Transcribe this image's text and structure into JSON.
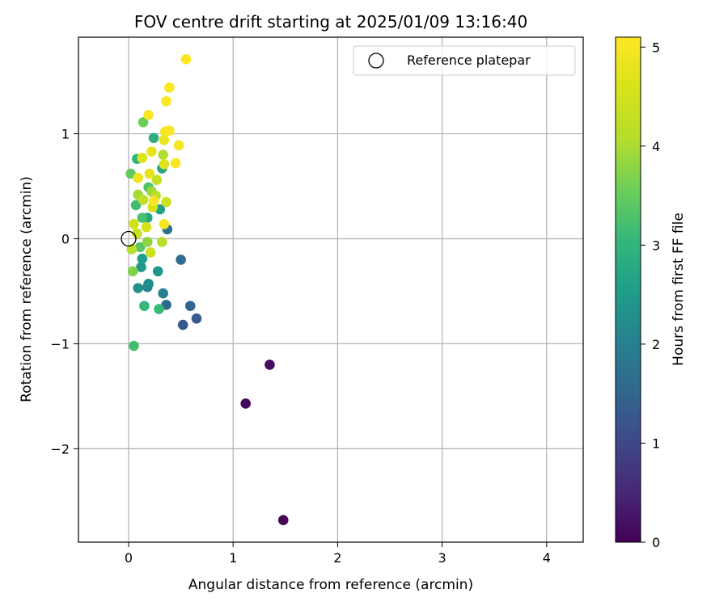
{
  "chart_data": {
    "type": "scatter",
    "title": "FOV centre drift starting at 2025/01/09 13:16:40",
    "xlabel": "Angular distance from reference (arcmin)",
    "ylabel": "Rotation from reference (arcmin)",
    "colorbar_label": "Hours from first FF file",
    "xlim": [
      -0.48,
      4.35
    ],
    "ylim": [
      -2.89,
      1.92
    ],
    "x_ticks": [
      0,
      1,
      2,
      3,
      4
    ],
    "y_ticks": [
      -2,
      -1,
      0,
      1
    ],
    "grid": true,
    "legend_position": "top-right",
    "colormap": "viridis",
    "color_range": [
      0,
      5.1
    ],
    "colorbar_ticks": [
      0,
      1,
      2,
      3,
      4,
      5
    ],
    "legend": [
      {
        "label": "Reference platepar",
        "marker": "open-circle"
      }
    ],
    "reference_point": {
      "x": 0,
      "y": 0
    },
    "points": [
      {
        "x": 1.48,
        "y": -2.68,
        "hours": 0.05
      },
      {
        "x": 1.12,
        "y": -1.57,
        "hours": 0.1
      },
      {
        "x": 1.35,
        "y": -1.2,
        "hours": 0.15
      },
      {
        "x": 0.52,
        "y": -0.82,
        "hours": 1.3
      },
      {
        "x": 0.65,
        "y": -0.76,
        "hours": 1.35
      },
      {
        "x": 0.59,
        "y": -0.64,
        "hours": 1.45
      },
      {
        "x": 0.36,
        "y": -0.63,
        "hours": 1.55
      },
      {
        "x": 0.5,
        "y": -0.2,
        "hours": 1.6
      },
      {
        "x": 0.37,
        "y": 0.09,
        "hours": 1.7
      },
      {
        "x": 0.33,
        "y": -0.52,
        "hours": 2.0
      },
      {
        "x": 0.18,
        "y": -0.46,
        "hours": 2.1
      },
      {
        "x": 0.19,
        "y": -0.43,
        "hours": 2.2
      },
      {
        "x": 0.09,
        "y": -0.47,
        "hours": 2.3
      },
      {
        "x": 0.28,
        "y": -0.31,
        "hours": 2.4
      },
      {
        "x": 0.12,
        "y": -0.27,
        "hours": 2.45
      },
      {
        "x": 0.13,
        "y": -0.19,
        "hours": 2.55
      },
      {
        "x": 0.3,
        "y": 0.28,
        "hours": 2.6
      },
      {
        "x": 0.18,
        "y": 0.2,
        "hours": 2.7
      },
      {
        "x": 0.32,
        "y": 0.67,
        "hours": 2.8
      },
      {
        "x": 0.24,
        "y": 0.96,
        "hours": 2.9
      },
      {
        "x": 0.08,
        "y": 0.76,
        "hours": 3.0
      },
      {
        "x": 0.15,
        "y": -0.64,
        "hours": 3.05
      },
      {
        "x": 0.29,
        "y": -0.67,
        "hours": 3.1
      },
      {
        "x": 0.07,
        "y": 0.32,
        "hours": 3.15
      },
      {
        "x": 0.05,
        "y": -1.02,
        "hours": 3.2
      },
      {
        "x": 0.13,
        "y": 0.2,
        "hours": 3.25
      },
      {
        "x": 0.19,
        "y": 0.49,
        "hours": 3.3
      },
      {
        "x": 0.11,
        "y": -0.08,
        "hours": 3.4
      },
      {
        "x": 0.02,
        "y": 0.62,
        "hours": 3.45
      },
      {
        "x": 0.14,
        "y": 1.11,
        "hours": 3.55
      },
      {
        "x": 0.04,
        "y": -0.31,
        "hours": 3.7
      },
      {
        "x": 0.18,
        "y": -0.03,
        "hours": 3.8
      },
      {
        "x": 0.22,
        "y": 0.45,
        "hours": 3.9
      },
      {
        "x": 0.09,
        "y": 0.42,
        "hours": 3.95
      },
      {
        "x": 0.33,
        "y": 0.8,
        "hours": 4.05
      },
      {
        "x": 0.32,
        "y": -0.03,
        "hours": 4.1
      },
      {
        "x": 0.03,
        "y": -0.1,
        "hours": 4.15
      },
      {
        "x": 0.26,
        "y": 0.41,
        "hours": 4.2
      },
      {
        "x": 0.14,
        "y": 0.37,
        "hours": 4.25
      },
      {
        "x": 0.27,
        "y": 0.56,
        "hours": 4.3
      },
      {
        "x": 0.08,
        "y": 0.05,
        "hours": 4.35
      },
      {
        "x": 0.21,
        "y": -0.13,
        "hours": 4.4
      },
      {
        "x": 0.36,
        "y": 0.35,
        "hours": 4.45
      },
      {
        "x": 0.05,
        "y": 0.14,
        "hours": 4.5
      },
      {
        "x": 0.17,
        "y": 0.11,
        "hours": 4.55
      },
      {
        "x": 0.23,
        "y": 0.3,
        "hours": 4.6
      },
      {
        "x": 0.13,
        "y": 0.77,
        "hours": 4.65
      },
      {
        "x": 0.34,
        "y": 0.71,
        "hours": 4.7
      },
      {
        "x": 0.2,
        "y": 0.62,
        "hours": 4.75
      },
      {
        "x": 0.22,
        "y": 0.83,
        "hours": 4.8
      },
      {
        "x": 0.34,
        "y": 0.94,
        "hours": 4.85
      },
      {
        "x": 0.09,
        "y": 0.58,
        "hours": 4.9
      },
      {
        "x": 0.35,
        "y": 1.02,
        "hours": 4.95
      },
      {
        "x": 0.48,
        "y": 0.89,
        "hours": 5.0
      },
      {
        "x": 0.34,
        "y": 0.14,
        "hours": 5.02
      },
      {
        "x": 0.24,
        "y": 0.36,
        "hours": 5.04
      },
      {
        "x": 0.45,
        "y": 0.72,
        "hours": 5.05
      },
      {
        "x": 0.36,
        "y": 1.31,
        "hours": 5.06
      },
      {
        "x": 0.39,
        "y": 1.44,
        "hours": 5.07
      },
      {
        "x": 0.19,
        "y": 1.18,
        "hours": 5.08
      },
      {
        "x": 0.39,
        "y": 1.03,
        "hours": 5.09
      },
      {
        "x": 0.55,
        "y": 1.71,
        "hours": 5.1
      }
    ]
  }
}
